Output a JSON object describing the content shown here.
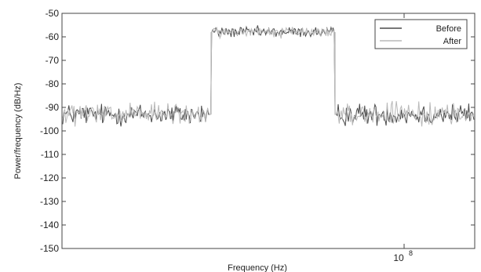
{
  "chart_data": {
    "type": "line",
    "title": "",
    "xlabel": "Frequency (Hz)",
    "ylabel": "Power/frequency (dB/Hz)",
    "x_scale": "log",
    "x_tick_label": "10",
    "x_tick_label_exponent": "8",
    "y_ticks": [
      "-50",
      "-60",
      "-70",
      "-80",
      "-90",
      "-100",
      "-110",
      "-120",
      "-130",
      "-140",
      "-150"
    ],
    "ylim": [
      -150,
      -50
    ],
    "grid": false,
    "legend_position": "top-right",
    "band": {
      "noise_floor_db": -93,
      "passband_db": -58,
      "noise_floor_spread_db": 5,
      "passband_spread_db": 2.5
    },
    "series": [
      {
        "name": "Before",
        "color": "#4a4a4a"
      },
      {
        "name": "After",
        "color": "#b8b8b8"
      }
    ]
  }
}
